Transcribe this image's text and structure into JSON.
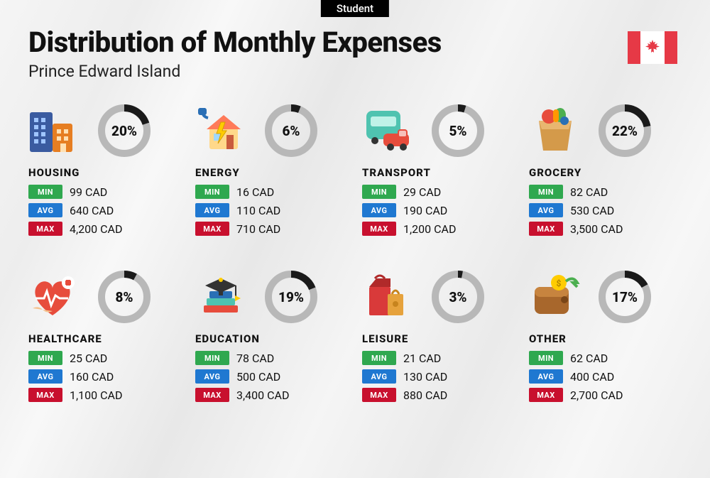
{
  "badge": "Student",
  "title": "Distribution of Monthly Expenses",
  "subtitle": "Prince Edward Island",
  "currency": "CAD",
  "colors": {
    "min": "#2fa84f",
    "avg": "#1f78d1",
    "max": "#c8102e",
    "ring_track": "#b8b8b8",
    "ring_fill": "#1a1a1a",
    "flag_red": "#e63946"
  },
  "labels": {
    "min": "MIN",
    "avg": "AVG",
    "max": "MAX"
  },
  "categories": [
    {
      "name": "HOUSING",
      "pct": 20,
      "min": "99 CAD",
      "avg": "640 CAD",
      "max": "4,200 CAD",
      "icon": "buildings"
    },
    {
      "name": "ENERGY",
      "pct": 6,
      "min": "16 CAD",
      "avg": "110 CAD",
      "max": "710 CAD",
      "icon": "energy"
    },
    {
      "name": "TRANSPORT",
      "pct": 5,
      "min": "29 CAD",
      "avg": "190 CAD",
      "max": "1,200 CAD",
      "icon": "transport"
    },
    {
      "name": "GROCERY",
      "pct": 22,
      "min": "82 CAD",
      "avg": "530 CAD",
      "max": "3,500 CAD",
      "icon": "grocery"
    },
    {
      "name": "HEALTHCARE",
      "pct": 8,
      "min": "25 CAD",
      "avg": "160 CAD",
      "max": "1,100 CAD",
      "icon": "healthcare"
    },
    {
      "name": "EDUCATION",
      "pct": 19,
      "min": "78 CAD",
      "avg": "500 CAD",
      "max": "3,400 CAD",
      "icon": "education"
    },
    {
      "name": "LEISURE",
      "pct": 3,
      "min": "21 CAD",
      "avg": "130 CAD",
      "max": "880 CAD",
      "icon": "leisure"
    },
    {
      "name": "OTHER",
      "pct": 17,
      "min": "62 CAD",
      "avg": "400 CAD",
      "max": "2,700 CAD",
      "icon": "other"
    }
  ],
  "ring": {
    "size": 78,
    "stroke": 10,
    "radius": 32
  }
}
